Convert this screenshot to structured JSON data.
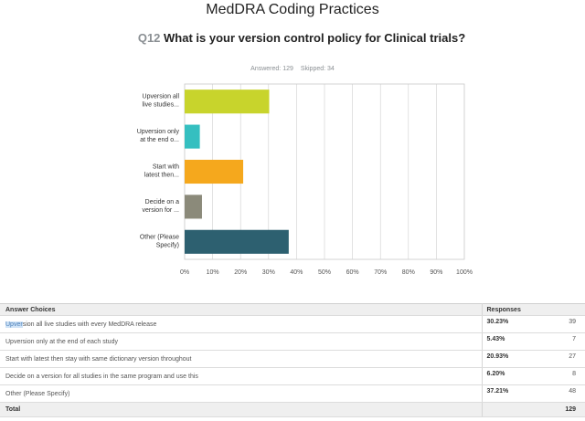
{
  "page": {
    "title": "MedDRA Coding Practices"
  },
  "question": {
    "number": "Q12",
    "text": "What is your version control policy for Clinical trials?",
    "answered": "Answered: 129",
    "skipped": "Skipped: 34"
  },
  "colors": {
    "grid": "#cfcfcf",
    "plot_bg": "#ffffff",
    "plot_border": "#c8c8c8"
  },
  "chart_data": {
    "type": "bar",
    "orientation": "horizontal",
    "categories": [
      [
        "Upversion all",
        "live studies..."
      ],
      [
        "Upversion only",
        "at the end o..."
      ],
      [
        "Start with",
        "latest then..."
      ],
      [
        "Decide on a",
        "version for ..."
      ],
      [
        "Other (Please",
        "Specify)"
      ]
    ],
    "values": [
      30.23,
      5.43,
      20.93,
      6.2,
      37.21
    ],
    "colors": [
      "#c8d42c",
      "#35bfc0",
      "#f5a81d",
      "#8b8a7a",
      "#2d6070"
    ],
    "xlim": [
      0,
      100
    ],
    "ticks": [
      "0%",
      "10%",
      "20%",
      "30%",
      "40%",
      "50%",
      "60%",
      "70%",
      "80%",
      "90%",
      "100%"
    ],
    "tick_values": [
      0,
      10,
      20,
      30,
      40,
      50,
      60,
      70,
      80,
      90,
      100
    ],
    "grid": true
  },
  "table": {
    "headers": {
      "choice": "Answer Choices",
      "responses": "Responses"
    },
    "rows": [
      {
        "highlight": "Upver",
        "rest": "sion all live studies with every MedDRA release",
        "pct": "30.23%",
        "count": "39"
      },
      {
        "highlight": "",
        "rest": "Upversion only at the end of each study",
        "pct": "5.43%",
        "count": "7"
      },
      {
        "highlight": "",
        "rest": "Start with latest then stay with same dictionary version throughout",
        "pct": "20.93%",
        "count": "27"
      },
      {
        "highlight": "",
        "rest": "Decide on a version for all studies in the same program and use this",
        "pct": "6.20%",
        "count": "8"
      },
      {
        "highlight": "",
        "rest": "Other (Please Specify)",
        "pct": "37.21%",
        "count": "48"
      }
    ],
    "total_label": "Total",
    "total_count": "129"
  }
}
